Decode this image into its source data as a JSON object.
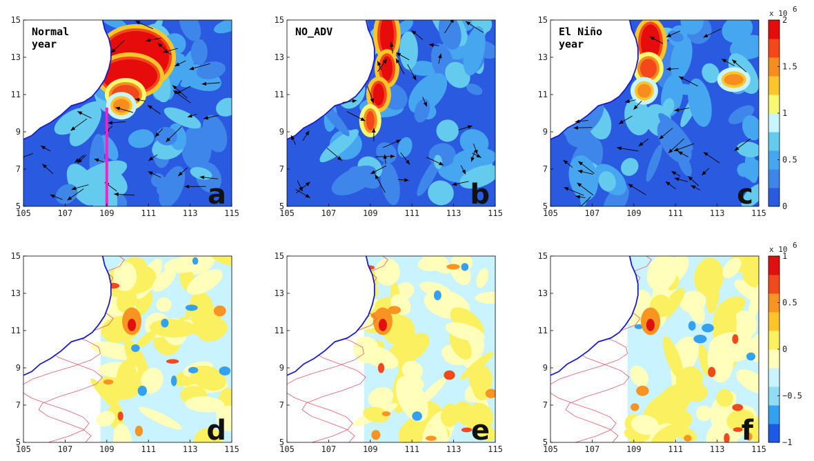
{
  "colors": {
    "land": "#ffffff",
    "coast": "#1a1acc",
    "top_scale": [
      "#2a5ae0",
      "#3f86ea",
      "#46a6f0",
      "#64cbef",
      "#c8f6ff",
      "#f9f871",
      "#fbc52c",
      "#f78d1f",
      "#f4481a",
      "#e60c0c"
    ],
    "bottom_scale": [
      "#1a5ae6",
      "#33a0f0",
      "#8fdcf4",
      "#c9f4ff",
      "#ffffbb",
      "#fbf060",
      "#fbc42a",
      "#f99322",
      "#f04a1c",
      "#e01010"
    ]
  },
  "chart_data": [
    {
      "type": "heatmap",
      "panel": "a",
      "letter": "a",
      "label_lines": [
        "Normal",
        "year"
      ],
      "x_ticks": [
        105,
        107,
        109,
        111,
        113,
        115
      ],
      "y_ticks": [
        5,
        7,
        9,
        11,
        13,
        15
      ],
      "xlim": [
        105,
        115
      ],
      "ylim": [
        5,
        15
      ],
      "section_line": {
        "x": 109,
        "y": [
          5,
          10.3
        ],
        "color": "#ff1ec8"
      }
    },
    {
      "type": "heatmap",
      "panel": "b",
      "letter": "b",
      "label_lines": [
        "NO_ADV"
      ],
      "x_ticks": [
        105,
        107,
        109,
        111,
        113,
        115
      ],
      "y_ticks": [
        5,
        7,
        9,
        11,
        13,
        15
      ],
      "xlim": [
        105,
        115
      ],
      "ylim": [
        5,
        15
      ]
    },
    {
      "type": "heatmap",
      "panel": "c",
      "letter": "c",
      "label_lines": [
        "El Niño",
        "year"
      ],
      "x_ticks": [
        105,
        107,
        109,
        111,
        113,
        115
      ],
      "y_ticks": [
        5,
        7,
        9,
        11,
        13,
        15
      ],
      "xlim": [
        105,
        115
      ],
      "ylim": [
        5,
        15
      ],
      "colorbar": {
        "range": [
          0,
          2
        ],
        "ticks": [
          "0",
          "0.5",
          "1",
          "1.5",
          "2"
        ],
        "multiplier_prefix": "x 10",
        "multiplier_exp": "6"
      }
    },
    {
      "type": "heatmap",
      "panel": "d",
      "letter": "d",
      "label_lines": [],
      "x_ticks": [
        105,
        107,
        109,
        111,
        113,
        115
      ],
      "y_ticks": [
        5,
        7,
        9,
        11,
        13,
        15
      ],
      "xlim": [
        105,
        115
      ],
      "ylim": [
        5,
        15
      ]
    },
    {
      "type": "heatmap",
      "panel": "e",
      "letter": "e",
      "label_lines": [],
      "x_ticks": [
        105,
        107,
        109,
        111,
        113,
        115
      ],
      "y_ticks": [
        5,
        7,
        9,
        11,
        13,
        15
      ],
      "xlim": [
        105,
        115
      ],
      "ylim": [
        5,
        15
      ]
    },
    {
      "type": "heatmap",
      "panel": "f",
      "letter": "f",
      "label_lines": [],
      "x_ticks": [
        105,
        107,
        109,
        111,
        113,
        115
      ],
      "y_ticks": [
        5,
        7,
        9,
        11,
        13,
        15
      ],
      "xlim": [
        105,
        115
      ],
      "ylim": [
        5,
        15
      ],
      "colorbar": {
        "range": [
          -1,
          1
        ],
        "ticks": [
          "−1",
          "−0.5",
          "0",
          "0.5",
          "1"
        ],
        "multiplier_prefix": "x 10",
        "multiplier_exp": "6"
      }
    }
  ]
}
